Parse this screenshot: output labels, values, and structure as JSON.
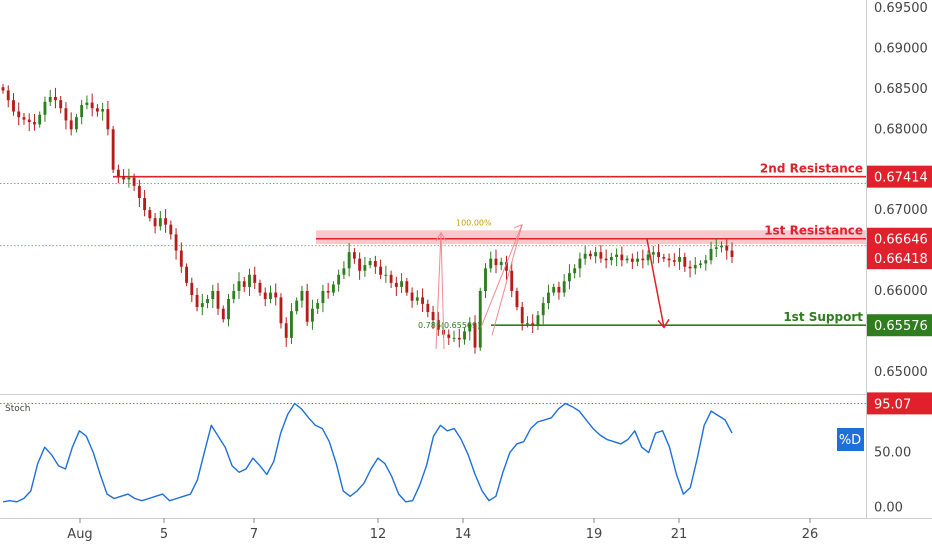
{
  "colors": {
    "resistance": "#e0202a",
    "resistance_zone": "#f7b6b9",
    "support": "#2e7d1e",
    "candle_up": "#2e7d1e",
    "candle_down": "#b71c1c",
    "stoch_line": "#1e6fd9",
    "stoch_badge": "#1e6fd9",
    "fib_text": "#c8a000"
  },
  "chart_data": [
    {
      "type": "candlestick",
      "title": "",
      "ylim": [
        0.6475,
        0.6955
      ],
      "y_ticks": [
        "0.69500",
        "0.69000",
        "0.68500",
        "0.68000",
        "0.67000",
        "0.66000",
        "0.65000"
      ],
      "x_ticks": [
        "Aug",
        "5",
        "7",
        "12",
        "14",
        "19",
        "21",
        "26"
      ],
      "levels": [
        {
          "name": "2nd Resistance",
          "value": 0.67414,
          "badge": "0.67414",
          "kind": "resistance"
        },
        {
          "name": "1st Resistance",
          "value": 0.66646,
          "badge": "0.66646",
          "kind": "resistance"
        },
        {
          "name": "1st Support",
          "value": 0.65576,
          "badge": "0.65576",
          "kind": "support"
        }
      ],
      "current_price": {
        "value": 0.66418,
        "badge": "0.66418"
      },
      "resistance_zone": [
        0.6658,
        0.6675
      ],
      "fib_labels": {
        "top": "100.00%",
        "bottom": "0.786(0.65569)"
      },
      "close_series": [
        0.6848,
        0.6836,
        0.6822,
        0.6815,
        0.6812,
        0.6809,
        0.6806,
        0.6818,
        0.6834,
        0.684,
        0.6836,
        0.6826,
        0.6811,
        0.68,
        0.6815,
        0.683,
        0.6833,
        0.6826,
        0.6822,
        0.6825,
        0.68,
        0.675,
        0.6742,
        0.6738,
        0.674,
        0.673,
        0.6715,
        0.67,
        0.669,
        0.668,
        0.669,
        0.6682,
        0.667,
        0.665,
        0.663,
        0.661,
        0.6595,
        0.658,
        0.6585,
        0.659,
        0.66,
        0.6578,
        0.6565,
        0.659,
        0.66,
        0.6612,
        0.6605,
        0.662,
        0.661,
        0.6598,
        0.659,
        0.6598,
        0.6592,
        0.656,
        0.6542,
        0.6575,
        0.6588,
        0.66,
        0.6562,
        0.6578,
        0.6585,
        0.66,
        0.6598,
        0.6608,
        0.662,
        0.6628,
        0.6648,
        0.664,
        0.6625,
        0.6632,
        0.6637,
        0.663,
        0.662,
        0.662,
        0.661,
        0.6605,
        0.6612,
        0.6598,
        0.6588,
        0.6592,
        0.6584,
        0.6574,
        0.6564,
        0.6552,
        0.6546,
        0.6542,
        0.6542,
        0.654,
        0.655,
        0.656,
        0.653,
        0.66,
        0.6628,
        0.664,
        0.6632,
        0.6636,
        0.6625,
        0.66,
        0.658,
        0.656,
        0.656,
        0.6558,
        0.657,
        0.6585,
        0.6598,
        0.6605,
        0.6598,
        0.6612,
        0.6622,
        0.6628,
        0.664,
        0.6646,
        0.6643,
        0.6648,
        0.664,
        0.6638,
        0.6642,
        0.6645,
        0.6638,
        0.664,
        0.6636,
        0.664,
        0.6638,
        0.6645,
        0.6648,
        0.6642,
        0.664,
        0.6638,
        0.6636,
        0.6642,
        0.663,
        0.6628,
        0.6632,
        0.6634,
        0.6638,
        0.6652,
        0.6654,
        0.6656,
        0.665,
        0.6642
      ]
    },
    {
      "type": "line",
      "title": "Stoch",
      "series": [
        {
          "name": "%D",
          "values": [
            5,
            6,
            5,
            8,
            15,
            40,
            55,
            48,
            38,
            35,
            55,
            70,
            65,
            50,
            30,
            12,
            8,
            10,
            12,
            8,
            6,
            8,
            10,
            12,
            6,
            8,
            10,
            12,
            25,
            50,
            75,
            65,
            55,
            38,
            32,
            35,
            45,
            38,
            30,
            42,
            68,
            85,
            95,
            90,
            82,
            75,
            72,
            60,
            40,
            15,
            10,
            15,
            22,
            35,
            45,
            40,
            28,
            12,
            5,
            6,
            20,
            38,
            65,
            75,
            70,
            72,
            62,
            48,
            30,
            15,
            6,
            10,
            32,
            50,
            58,
            60,
            72,
            78,
            80,
            82,
            90,
            95,
            92,
            88,
            80,
            72,
            66,
            62,
            60,
            58,
            62,
            70,
            55,
            50,
            68,
            70,
            55,
            30,
            12,
            18,
            45,
            75,
            88,
            84,
            80,
            68
          ]
        }
      ],
      "ylim": [
        -8,
        100
      ],
      "y_ticks": [
        "50.00",
        "0.00"
      ],
      "level": {
        "value": 95.07,
        "badge": "95.07"
      }
    }
  ]
}
